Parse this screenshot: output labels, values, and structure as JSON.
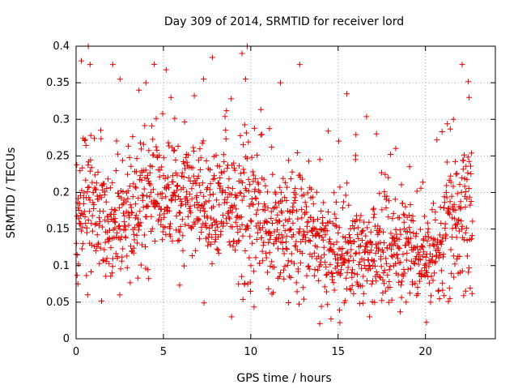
{
  "chart_data": {
    "type": "scatter",
    "title": "Day 309 of 2014, SRMTID for receiver lord",
    "xlabel": "GPS time / hours",
    "ylabel": "SRMTID / TECUs",
    "xlim": [
      0,
      24
    ],
    "ylim": [
      0,
      0.4
    ],
    "xticks": [
      0,
      5,
      10,
      15,
      20
    ],
    "xtick_labels": [
      "0",
      "5",
      "10",
      "15",
      "20"
    ],
    "yticks": [
      0,
      0.05,
      0.1,
      0.15,
      0.2,
      0.25,
      0.3,
      0.35,
      0.4
    ],
    "ytick_labels": [
      "0",
      "0.05",
      "0.1",
      "0.15",
      "0.2",
      "0.25",
      "0.3",
      "0.35",
      "0.4"
    ],
    "grid": true,
    "marker": "+",
    "series_color": "#e00000",
    "envelope": [
      {
        "t": 0.0,
        "mean": 0.17,
        "sd": 0.045
      },
      {
        "t": 1.0,
        "mean": 0.19,
        "sd": 0.05
      },
      {
        "t": 2.0,
        "mean": 0.16,
        "sd": 0.04
      },
      {
        "t": 3.0,
        "mean": 0.17,
        "sd": 0.045
      },
      {
        "t": 3.6,
        "mean": 0.2,
        "sd": 0.05
      },
      {
        "t": 4.0,
        "mean": 0.2,
        "sd": 0.05
      },
      {
        "t": 5.0,
        "mean": 0.19,
        "sd": 0.045
      },
      {
        "t": 6.0,
        "mean": 0.19,
        "sd": 0.045
      },
      {
        "t": 7.0,
        "mean": 0.18,
        "sd": 0.04
      },
      {
        "t": 8.0,
        "mean": 0.17,
        "sd": 0.04
      },
      {
        "t": 9.0,
        "mean": 0.17,
        "sd": 0.045
      },
      {
        "t": 9.8,
        "mean": 0.18,
        "sd": 0.06
      },
      {
        "t": 11.0,
        "mean": 0.15,
        "sd": 0.04
      },
      {
        "t": 12.0,
        "mean": 0.14,
        "sd": 0.04
      },
      {
        "t": 13.0,
        "mean": 0.15,
        "sd": 0.05
      },
      {
        "t": 14.0,
        "mean": 0.13,
        "sd": 0.035
      },
      {
        "t": 15.0,
        "mean": 0.12,
        "sd": 0.035
      },
      {
        "t": 16.0,
        "mean": 0.12,
        "sd": 0.035
      },
      {
        "t": 17.0,
        "mean": 0.11,
        "sd": 0.035
      },
      {
        "t": 18.0,
        "mean": 0.13,
        "sd": 0.04
      },
      {
        "t": 19.0,
        "mean": 0.12,
        "sd": 0.035
      },
      {
        "t": 20.0,
        "mean": 0.11,
        "sd": 0.03
      },
      {
        "t": 21.0,
        "mean": 0.13,
        "sd": 0.04
      },
      {
        "t": 21.5,
        "mean": 0.17,
        "sd": 0.06
      },
      {
        "t": 22.7,
        "mean": 0.19,
        "sd": 0.05
      }
    ],
    "time_range": [
      0,
      22.7
    ],
    "sample_count": 1500,
    "highlight_points": [
      {
        "x": 0.1,
        "y": 0.075
      },
      {
        "x": 0.3,
        "y": 0.38
      },
      {
        "x": 0.7,
        "y": 0.4
      },
      {
        "x": 0.8,
        "y": 0.375
      },
      {
        "x": 2.1,
        "y": 0.375
      },
      {
        "x": 2.5,
        "y": 0.06
      },
      {
        "x": 3.6,
        "y": 0.34
      },
      {
        "x": 4.0,
        "y": 0.35
      },
      {
        "x": 7.3,
        "y": 0.355
      },
      {
        "x": 8.9,
        "y": 0.03
      },
      {
        "x": 9.5,
        "y": 0.39
      },
      {
        "x": 9.8,
        "y": 0.4
      },
      {
        "x": 9.7,
        "y": 0.355
      },
      {
        "x": 11.7,
        "y": 0.35
      },
      {
        "x": 12.8,
        "y": 0.375
      },
      {
        "x": 15.1,
        "y": 0.022
      },
      {
        "x": 15.5,
        "y": 0.335
      },
      {
        "x": 16.0,
        "y": 0.245
      },
      {
        "x": 16.8,
        "y": 0.03
      },
      {
        "x": 17.2,
        "y": 0.28
      },
      {
        "x": 18.3,
        "y": 0.26
      },
      {
        "x": 21.4,
        "y": 0.055
      },
      {
        "x": 21.6,
        "y": 0.3
      },
      {
        "x": 22.1,
        "y": 0.375
      },
      {
        "x": 22.5,
        "y": 0.33
      },
      {
        "x": 22.3,
        "y": 0.065
      }
    ]
  }
}
